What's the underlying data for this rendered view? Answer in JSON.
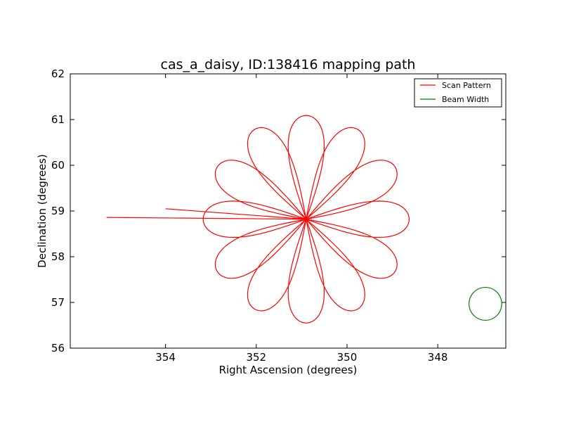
{
  "chart_data": {
    "type": "line",
    "title": "cas_a_daisy, ID:138416 mapping path",
    "xlabel": "Right Ascension (degrees)",
    "ylabel": "Declination (degrees)",
    "xlim": [
      356.1,
      346.5
    ],
    "ylim": [
      56,
      62
    ],
    "x_ticks": [
      354,
      352,
      350,
      348
    ],
    "y_ticks": [
      56,
      57,
      58,
      59,
      60,
      61,
      62
    ],
    "x_tick_labels": [
      "354",
      "352",
      "350",
      "348"
    ],
    "y_tick_labels": [
      "56",
      "57",
      "58",
      "59",
      "60",
      "61",
      "62"
    ],
    "grid": false,
    "legend_position": "top-right",
    "series": [
      {
        "name": "Scan Pattern",
        "color": "#ff0000",
        "center": [
          350.9,
          58.82
        ],
        "petal_directions_deg": [
          0,
          30,
          60,
          90,
          120,
          150,
          180,
          210,
          240,
          270,
          300,
          330
        ],
        "petal_radius_deg": 2.27,
        "petal_width_ratio": 0.28,
        "start_point": [
          355.3,
          58.82
        ],
        "end_point": [
          354.0,
          59.05
        ]
      },
      {
        "name": "Beam Width",
        "color": "#008000",
        "center": [
          346.95,
          56.97
        ],
        "radius_deg": 0.36
      }
    ]
  }
}
